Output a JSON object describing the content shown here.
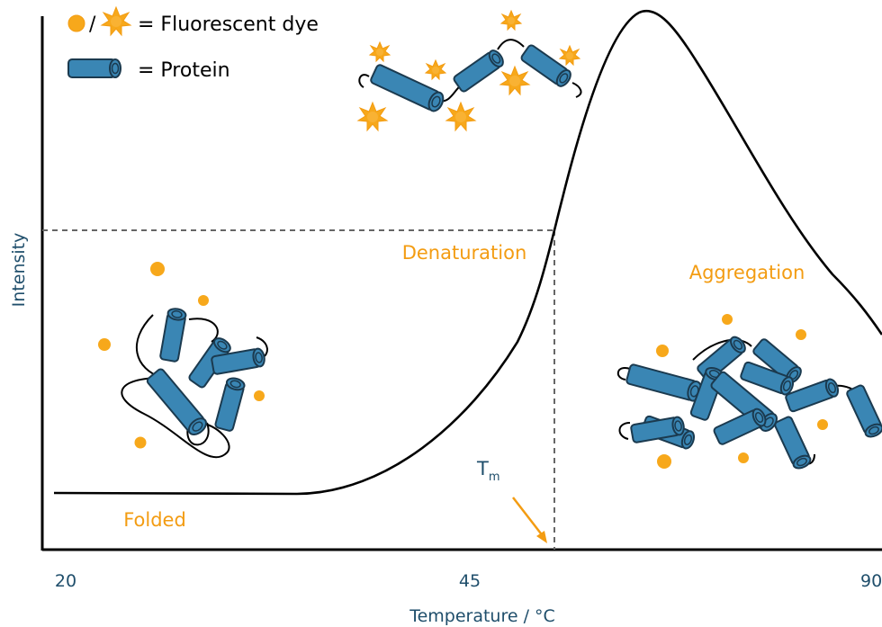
{
  "legend": {
    "dye_label": "= Fluorescent dye",
    "protein_label": "= Protein",
    "separator": "/"
  },
  "axes": {
    "ylabel": "Intensity",
    "xlabel": "Temperature / °C",
    "xticks": [
      "20",
      "45",
      "90"
    ]
  },
  "annotations": {
    "folded": "Folded",
    "denaturation": "Denaturation",
    "aggregation": "Aggregation",
    "tm_main": "T",
    "tm_sub": "m"
  },
  "colors": {
    "dye": "#F7A81B",
    "protein_fill": "#3A86B4",
    "protein_stroke": "#1B3A4F",
    "orange_text": "#F39C12",
    "axis_text": "#1F4E6B",
    "curve": "#000000"
  }
}
